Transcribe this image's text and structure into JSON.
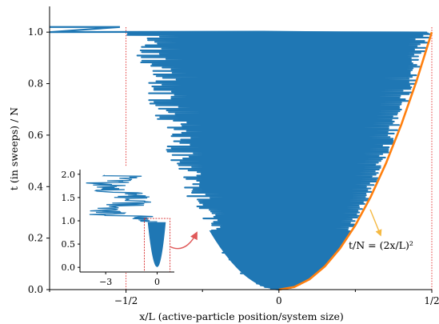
{
  "chart_data": [
    {
      "type": "line",
      "xlabel": "x/L (active-particle position/system size)",
      "ylabel": "t (in sweeps) / N",
      "xlim": [
        -0.75,
        0.5
      ],
      "ylim": [
        0,
        1.1
      ],
      "xticks": [
        {
          "value": -0.5,
          "label": "−1/2"
        },
        {
          "value": 0,
          "label": "0"
        },
        {
          "value": 0.5,
          "label": "1/2"
        }
      ],
      "yticks": [
        {
          "value": 0.0,
          "label": "0.0"
        },
        {
          "value": 0.2,
          "label": "0.2"
        },
        {
          "value": 0.4,
          "label": "0.4"
        },
        {
          "value": 0.6,
          "label": "0.6"
        },
        {
          "value": 0.8,
          "label": "0.8"
        },
        {
          "value": 1.0,
          "label": "1.0"
        }
      ],
      "vertical_lines": [
        -0.5,
        0.5
      ],
      "series": [
        {
          "role": "trajectory",
          "color": "#1f77b4",
          "envelope": "t/N = (2x/L)^2 for t/N <= 1",
          "upper_segment": {
            "x": [
              -0.75,
              -0.05
            ],
            "y": [
              1.0,
              1.02
            ]
          }
        },
        {
          "role": "bound",
          "color": "#ff7f0e",
          "x": [
            0,
            0.05,
            0.1,
            0.15,
            0.2,
            0.25,
            0.3,
            0.35,
            0.4,
            0.45,
            0.5
          ],
          "y": [
            0,
            0.01,
            0.04,
            0.09,
            0.16,
            0.25,
            0.36,
            0.49,
            0.64,
            0.81,
            1.0
          ]
        }
      ],
      "annotations": [
        {
          "text": "t/N = (2x/L)²",
          "arrow_color": "#f5b942",
          "points_to": {
            "x": 0.33,
            "y": 0.42
          }
        }
      ]
    },
    {
      "type": "line",
      "role": "inset",
      "xlim": [
        -4.5,
        1.0
      ],
      "ylim": [
        -0.1,
        2.1
      ],
      "xticks": [
        {
          "value": -3,
          "label": "−3"
        },
        {
          "value": 0,
          "label": "0"
        }
      ],
      "yticks": [
        {
          "value": 0.0,
          "label": "0.0"
        },
        {
          "value": 0.5,
          "label": "0.5"
        },
        {
          "value": 1.0,
          "label": "1.0"
        },
        {
          "value": 1.5,
          "label": "1.5"
        },
        {
          "value": 2.0,
          "label": "2.0"
        }
      ],
      "zoom_box": {
        "x": [
          -0.75,
          0.75
        ],
        "y": [
          -0.1,
          1.05
        ],
        "color": "#d62728"
      },
      "series": [
        {
          "role": "trajectory",
          "color": "#1f77b4"
        }
      ],
      "arrow_color": "#e05a5a"
    }
  ]
}
